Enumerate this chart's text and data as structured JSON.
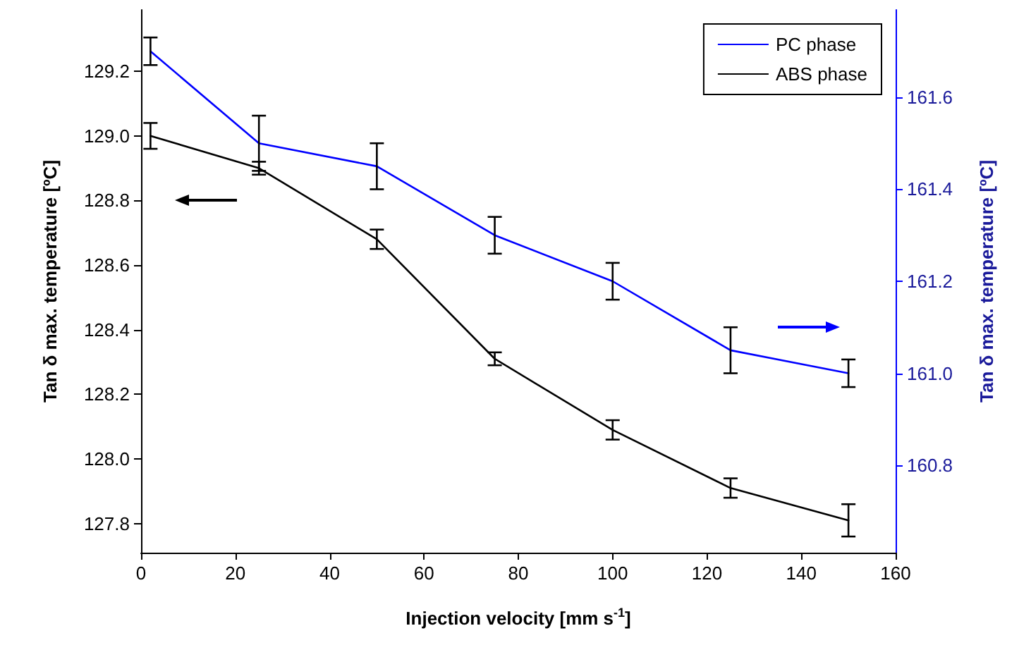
{
  "chart_data": {
    "type": "line",
    "xlabel": "Injection velocity [mm s$^{-1}$]",
    "ylabel": "Tan δ max. temperature [ºC]",
    "y2label": "Tan δ max. temperature [ºC]",
    "xlim": [
      0,
      160
    ],
    "xticks": [
      0,
      20,
      40,
      60,
      80,
      100,
      120,
      140,
      160
    ],
    "ylim": [
      127.71,
      129.39
    ],
    "yticks": [
      127.8,
      {
        "value": 128,
        "label": "128.0"
      },
      128.2,
      128.4,
      128.6,
      128.8,
      {
        "value": 129,
        "label": "129.0"
      },
      129.2
    ],
    "y2lim": [
      160.61,
      161.79
    ],
    "y2ticks": [
      160.8,
      {
        "value": 161,
        "label": "161.0"
      },
      161.2,
      161.4,
      161.6
    ],
    "grid": false,
    "legend": "top right",
    "marker": "none",
    "line_style": "solid",
    "series": [
      {
        "name": "PC phase",
        "color": "#0000ff",
        "axis": "y2",
        "x": [
          2,
          25,
          50,
          75,
          100,
          125,
          150
        ],
        "values": [
          161.7,
          161.5,
          161.45,
          161.3,
          161.2,
          161.05,
          161.0
        ],
        "errors": [
          0.03,
          0.06,
          0.05,
          0.04,
          0.04,
          0.05,
          0.03
        ]
      },
      {
        "name": "ABS phase",
        "color": "#000000",
        "axis": "y",
        "x": [
          2,
          25,
          50,
          75,
          100,
          125,
          150
        ],
        "values": [
          129.0,
          128.9,
          128.68,
          128.31,
          128.09,
          127.91,
          127.81
        ],
        "errors": [
          0.04,
          0.02,
          0.03,
          0.02,
          0.03,
          0.03,
          0.05
        ]
      }
    ]
  }
}
